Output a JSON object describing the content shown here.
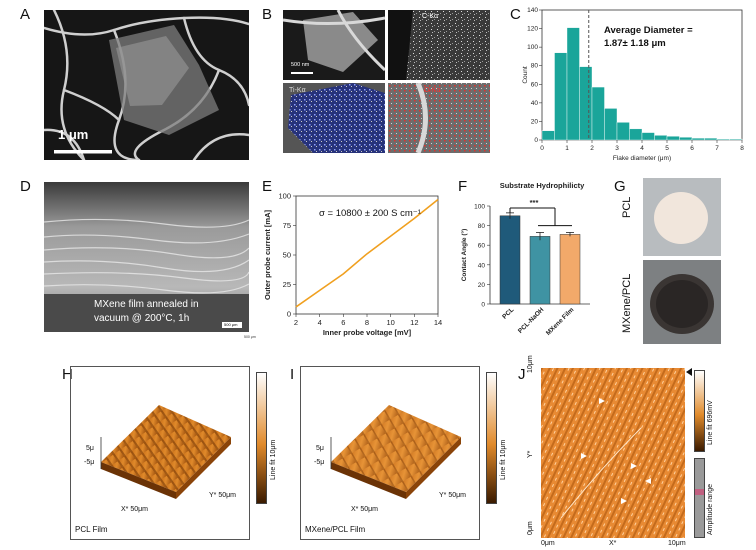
{
  "panels": {
    "a": {
      "letter": "A",
      "scale_label": "1 μm"
    },
    "b": {
      "letter": "B",
      "scale_label": "500 nm",
      "maps": [
        "C-Kα",
        "Ti-Kα",
        "O-Kα"
      ]
    },
    "c": {
      "letter": "C",
      "annotation_line1": "Average Diameter =",
      "annotation_line2": "1.87± 1.18 μm",
      "xlabel": "Flake diameter (μm)",
      "ylabel": "Count"
    },
    "d": {
      "letter": "D",
      "caption_line1": "MXene film annealed in",
      "caption_line2": "vacuum @ 200°C, 1h",
      "scale_label": "500 μm",
      "scale_label2": "500 μm"
    },
    "e": {
      "letter": "E",
      "annotation": "σ = 10800 ± 200 S cm⁻¹",
      "xlabel": "Inner probe voltage [mV]",
      "ylabel": "Outer probe current [mA]"
    },
    "f": {
      "letter": "F",
      "title": "Substrate Hydrophilicty",
      "significance": "***",
      "ylabel": "Contact Angle (°)"
    },
    "g": {
      "letter": "G",
      "label_top": "PCL",
      "label_bottom": "MXene/PCL"
    },
    "h": {
      "letter": "H",
      "caption": "PCL Film",
      "z_top": "5μ",
      "z_bottom": "-5μ",
      "x_axis": "X* 50μm",
      "y_axis": "Y* 50μm",
      "colorbar_label": "Line fit 10μm"
    },
    "i": {
      "letter": "I",
      "caption": "MXene/PCL Film",
      "z_top": "5μ",
      "z_bottom": "-5μ",
      "x_axis": "X* 50μm",
      "y_axis": "Y* 50μm",
      "colorbar_label": "Line fit 10μm"
    },
    "j": {
      "letter": "J",
      "y_top": "10μm",
      "y_mid": "Y*",
      "y_bottom": "0μm",
      "x_left": "0μm",
      "x_mid": "X*",
      "x_right": "10μm",
      "colorbar_label": "Line fit 696mV",
      "range_label": "Amplitude range"
    }
  },
  "chart_data": [
    {
      "type": "bar",
      "panel": "C",
      "xlabel": "Flake diameter (μm)",
      "ylabel": "Count",
      "bin_width": 0.5,
      "bin_starts": [
        0,
        0.5,
        1,
        1.5,
        2,
        2.5,
        3,
        3.5,
        4,
        4.5,
        5,
        5.5,
        6,
        6.5,
        7,
        7.5
      ],
      "values": [
        10,
        94,
        121,
        79,
        57,
        34,
        19,
        12,
        8,
        5,
        4,
        3,
        2,
        2,
        1,
        1
      ],
      "mean_line": 1.87,
      "xlim": [
        0,
        8
      ],
      "ylim": [
        0,
        140
      ],
      "xticks": [
        0,
        1,
        2,
        3,
        4,
        5,
        6,
        7,
        8
      ],
      "yticks": [
        0,
        20,
        40,
        60,
        80,
        100,
        120,
        140
      ],
      "colors": {
        "bar": "#1aa59a",
        "mean_line": "#555555"
      }
    },
    {
      "type": "line",
      "panel": "E",
      "xlabel": "Inner probe voltage [mV]",
      "ylabel": "Outer probe current [mA]",
      "x": [
        2,
        4,
        6,
        8,
        10,
        12,
        14
      ],
      "y": [
        6,
        20,
        34,
        51,
        66,
        81,
        97
      ],
      "xlim": [
        2,
        14
      ],
      "ylim": [
        0,
        100
      ],
      "xticks": [
        2,
        4,
        6,
        8,
        10,
        12,
        14
      ],
      "yticks": [
        0,
        25,
        50,
        75,
        100
      ],
      "colors": {
        "line": "#f0a020"
      }
    },
    {
      "type": "bar",
      "panel": "F",
      "title": "Substrate Hydrophilicty",
      "ylabel": "Contact Angle (°)",
      "categories": [
        "PCL",
        "PCL-NaOH",
        "MXene Film"
      ],
      "values": [
        90,
        69,
        71
      ],
      "errors": [
        3,
        4,
        2
      ],
      "ylim": [
        0,
        100
      ],
      "yticks": [
        0,
        20,
        40,
        60,
        80,
        100
      ],
      "colors": [
        "#1f5a7a",
        "#3f93a3",
        "#f2a96a"
      ]
    }
  ]
}
